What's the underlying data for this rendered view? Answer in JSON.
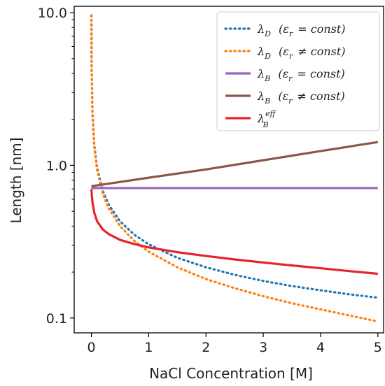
{
  "chart_data": {
    "type": "line",
    "title": "",
    "xlabel": "NaCl Concentration [M]",
    "ylabel": "Length [nm]",
    "xlim": [
      -0.3,
      5.1
    ],
    "ylim": [
      0.08,
      11.0
    ],
    "yscale": "log",
    "xticks": [
      0,
      1,
      2,
      3,
      4,
      5
    ],
    "xtick_labels": [
      "0",
      "1",
      "2",
      "3",
      "4",
      "5"
    ],
    "yticks": [
      0.1,
      1.0,
      10.0
    ],
    "ytick_labels": [
      "0.1",
      "1.0",
      "10.0"
    ],
    "grid": false,
    "legend_position": "top-right",
    "series": [
      {
        "label_main": "λ",
        "label_sub": "D",
        "label_cond": "(ε",
        "label_cond_sub": "r",
        "label_rel": "= const)",
        "color": "#1f77b4",
        "style": "dotted",
        "x": [
          0.001,
          0.005,
          0.02,
          0.05,
          0.1,
          0.2,
          0.3,
          0.5,
          0.75,
          1.0,
          1.5,
          2.0,
          2.5,
          3.0,
          3.5,
          4.0,
          4.5,
          5.0
        ],
        "y": [
          9.6,
          4.3,
          2.15,
          1.36,
          0.96,
          0.68,
          0.555,
          0.43,
          0.351,
          0.304,
          0.248,
          0.215,
          0.192,
          0.175,
          0.162,
          0.152,
          0.143,
          0.136
        ]
      },
      {
        "label_main": "λ",
        "label_sub": "D",
        "label_cond": "(ε",
        "label_cond_sub": "r",
        "label_rel": "≠ const)",
        "color": "#ff7f0e",
        "style": "dotted",
        "x": [
          0.001,
          0.005,
          0.02,
          0.05,
          0.1,
          0.2,
          0.3,
          0.5,
          0.75,
          1.0,
          1.5,
          2.0,
          2.5,
          3.0,
          3.5,
          4.0,
          4.5,
          5.0
        ],
        "y": [
          9.6,
          4.28,
          2.12,
          1.33,
          0.93,
          0.65,
          0.525,
          0.4,
          0.32,
          0.272,
          0.215,
          0.18,
          0.157,
          0.139,
          0.125,
          0.114,
          0.104,
          0.095
        ]
      },
      {
        "label_main": "λ",
        "label_sub": "B",
        "label_cond": "(ε",
        "label_cond_sub": "r",
        "label_rel": "= const)",
        "color": "#9467bd",
        "style": "solid",
        "x": [
          0,
          5
        ],
        "y": [
          0.71,
          0.71
        ]
      },
      {
        "label_main": "λ",
        "label_sub": "B",
        "label_cond": "(ε",
        "label_cond_sub": "r",
        "label_rel": "≠ const)",
        "color": "#8c564b",
        "style": "solid",
        "x": [
          0,
          1,
          2,
          3,
          4,
          5
        ],
        "y": [
          0.73,
          0.83,
          0.94,
          1.08,
          1.24,
          1.42
        ]
      },
      {
        "label_main": "λ",
        "label_sub": "B",
        "label_sup": "eff",
        "color": "#e8222d",
        "style": "solid",
        "x": [
          0.001,
          0.005,
          0.01,
          0.02,
          0.05,
          0.1,
          0.2,
          0.3,
          0.5,
          0.75,
          1.0,
          1.5,
          2.0,
          2.5,
          3.0,
          3.5,
          4.0,
          4.5,
          5.0
        ],
        "y": [
          0.7,
          0.66,
          0.62,
          0.57,
          0.49,
          0.43,
          0.38,
          0.355,
          0.325,
          0.305,
          0.29,
          0.27,
          0.255,
          0.242,
          0.231,
          0.221,
          0.212,
          0.203,
          0.195
        ]
      }
    ]
  }
}
